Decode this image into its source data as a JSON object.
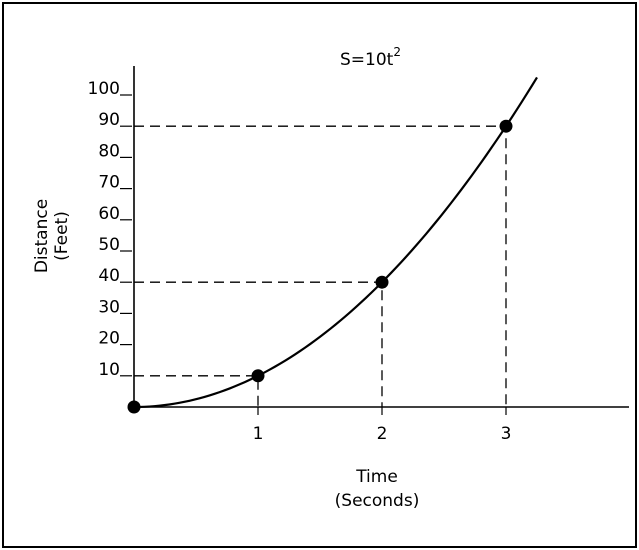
{
  "chart_data": {
    "type": "line",
    "title": "S=10t",
    "title_superscript": "2",
    "xlabel": "Time",
    "xlabel_unit": "(Seconds)",
    "ylabel": "Distance",
    "ylabel_unit": "(Feet)",
    "x_ticks": [
      "1",
      "2",
      "3"
    ],
    "y_ticks": [
      "10",
      "20",
      "30",
      "40",
      "50",
      "60",
      "70",
      "80",
      "90",
      "100"
    ],
    "xlim": [
      0,
      3.9
    ],
    "ylim": [
      0,
      100
    ],
    "grid": false,
    "legend": "none",
    "series": [
      {
        "function": "S=10t^2",
        "x_start": 0,
        "x_end": 3.25,
        "points": [
          {
            "x": 0,
            "y": 0
          },
          {
            "x": 1,
            "y": 10
          },
          {
            "x": 2,
            "y": 40
          },
          {
            "x": 3,
            "y": 90
          }
        ]
      }
    ]
  }
}
